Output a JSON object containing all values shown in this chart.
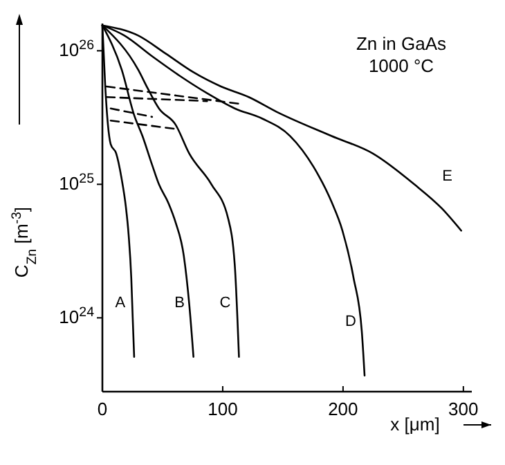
{
  "chart_data": {
    "type": "line",
    "title": "Zn in GaAs",
    "subtitle": "1000 °C",
    "xlabel": "x [μm]",
    "ylabel": "C$_{Zn}$ [m$^{-3}$]",
    "log": "y",
    "xlim": [
      0,
      307
    ],
    "xticks": [
      0,
      100,
      200,
      300
    ],
    "ylim": [
      2.8e+23,
      1.6e+26
    ],
    "yticks": [
      {
        "value": 1e+24,
        "label": "10$^{24}$"
      },
      {
        "value": 1e+25,
        "label": "10$^{25}$"
      },
      {
        "value": 1e+26,
        "label": "10$^{26}$"
      }
    ],
    "grid": false,
    "marker": "none",
    "line_style": "solid",
    "series": [
      {
        "name": "A",
        "color": "#000000",
        "x": [
          0,
          2.3,
          4.6,
          6.9,
          11.5,
          16,
          19.5,
          21.8,
          24,
          25.2,
          26.4
        ],
        "values": [
          1.55e+26,
          5.6e+25,
          2.8e+25,
          2e+25,
          1.7e+25,
          1.1e+25,
          6.8e+24,
          4.2e+24,
          2e+24,
          1e+24,
          5.1e+23
        ]
      },
      {
        "name": "B",
        "color": "#000000",
        "x": [
          0,
          16.1,
          26.4,
          33.3,
          41.3,
          47,
          55,
          60.8,
          67.7,
          72.2,
          75.7
        ],
        "values": [
          1.55e+26,
          7.2e+25,
          3.3e+25,
          2.3e+25,
          1.4e+25,
          1e+25,
          7.2e+24,
          5.2e+24,
          2.9e+24,
          1.26e+24,
          5.1e+23
        ]
      },
      {
        "name": "C",
        "color": "#000000",
        "x": [
          0,
          29.8,
          37.8,
          47,
          60.8,
          72.2,
          90.6,
          104.4,
          110,
          113.5
        ],
        "values": [
          1.55e+26,
          7.2e+25,
          5.2e+25,
          3.7e+25,
          2.8e+25,
          1.7e+25,
          1e+25,
          5.6e+24,
          2.5e+24,
          5.1e+23
        ]
      },
      {
        "name": "D",
        "color": "#000000",
        "x": [
          0,
          18.3,
          41.3,
          64.2,
          87.2,
          110,
          133,
          156,
          175.5,
          190.4,
          199.5,
          208.7,
          215.6,
          217.9
        ],
        "values": [
          1.55e+26,
          1.3e+26,
          9.1e+25,
          6.5e+25,
          4.8e+25,
          3.7e+25,
          3.1e+25,
          2.3e+25,
          1.35e+25,
          7.4e+24,
          4.5e+24,
          2e+24,
          7.9e+23,
          3.7e+23
        ]
      },
      {
        "name": "E",
        "color": "#000000",
        "x": [
          0,
          29.8,
          52.8,
          75.7,
          98.6,
          121.6,
          144.5,
          190.4,
          224.8,
          259.2,
          282.1,
          298.2
        ],
        "values": [
          1.55e+26,
          1.3e+26,
          9.5e+25,
          6.9e+25,
          5.4e+25,
          4.5e+25,
          3.5e+25,
          2.3e+25,
          1.7e+25,
          1e+25,
          6.6e+24,
          4.5e+24
        ]
      },
      {
        "color": "#000000",
        "line_style": "dashed",
        "x": [
          3.4,
          114.7
        ],
        "values": [
          5.4e+25,
          4e+25
        ]
      },
      {
        "color": "#000000",
        "line_style": "dashed",
        "x": [
          3.4,
          87
        ],
        "values": [
          4.5e+25,
          4.2e+25
        ]
      },
      {
        "color": "#000000",
        "line_style": "dashed",
        "x": [
          6.9,
          41.3
        ],
        "values": [
          3.7e+25,
          3.2e+25
        ]
      },
      {
        "color": "#000000",
        "line_style": "dashed",
        "x": [
          6.9,
          60.8
        ],
        "values": [
          3e+25,
          2.6e+25
        ]
      }
    ]
  }
}
